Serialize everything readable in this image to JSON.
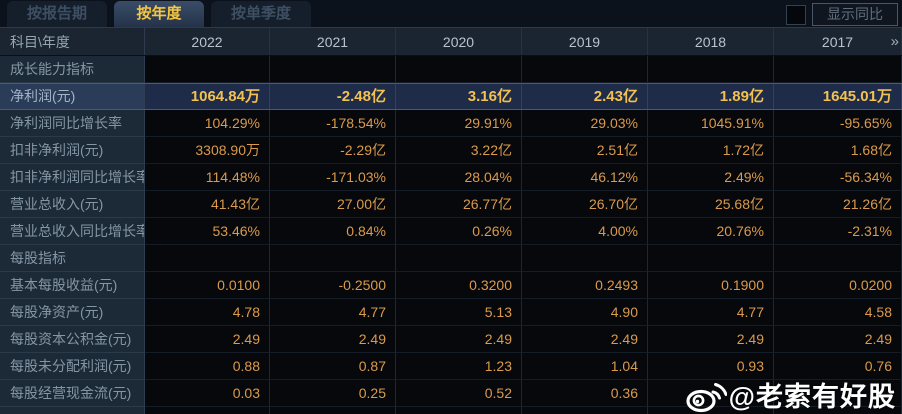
{
  "tabs": {
    "report_period": "按报告期",
    "annual": "按年度",
    "quarterly": "按单季度"
  },
  "toolbar": {
    "show_yoy_label": "显示同比"
  },
  "table": {
    "corner_label": "科目\\年度",
    "years": [
      "2022",
      "2021",
      "2020",
      "2019",
      "2018",
      "2017"
    ],
    "more_icon": "»",
    "rows": [
      {
        "label": "成长能力指标",
        "type": "section",
        "values": [
          "",
          "",
          "",
          "",
          "",
          ""
        ]
      },
      {
        "label": "净利润(元)",
        "type": "highlight",
        "values": [
          "1064.84万",
          "-2.48亿",
          "3.16亿",
          "2.43亿",
          "1.89亿",
          "1645.01万"
        ]
      },
      {
        "label": "净利润同比增长率",
        "type": "data",
        "values": [
          "104.29%",
          "-178.54%",
          "29.91%",
          "29.03%",
          "1045.91%",
          "-95.65%"
        ]
      },
      {
        "label": "扣非净利润(元)",
        "type": "data",
        "values": [
          "3308.90万",
          "-2.29亿",
          "3.22亿",
          "2.51亿",
          "1.72亿",
          "1.68亿"
        ]
      },
      {
        "label": "扣非净利润同比增长率",
        "type": "data",
        "values": [
          "114.48%",
          "-171.03%",
          "28.04%",
          "46.12%",
          "2.49%",
          "-56.34%"
        ]
      },
      {
        "label": "营业总收入(元)",
        "type": "data",
        "values": [
          "41.43亿",
          "27.00亿",
          "26.77亿",
          "26.70亿",
          "25.68亿",
          "21.26亿"
        ]
      },
      {
        "label": "营业总收入同比增长率",
        "type": "data",
        "values": [
          "53.46%",
          "0.84%",
          "0.26%",
          "4.00%",
          "20.76%",
          "-2.31%"
        ]
      },
      {
        "label": "每股指标",
        "type": "section",
        "values": [
          "",
          "",
          "",
          "",
          "",
          ""
        ]
      },
      {
        "label": "基本每股收益(元)",
        "type": "data",
        "values": [
          "0.0100",
          "-0.2500",
          "0.3200",
          "0.2493",
          "0.1900",
          "0.0200"
        ]
      },
      {
        "label": "每股净资产(元)",
        "type": "data",
        "values": [
          "4.78",
          "4.77",
          "5.13",
          "4.90",
          "4.77",
          "4.58"
        ]
      },
      {
        "label": "每股资本公积金(元)",
        "type": "data",
        "values": [
          "2.49",
          "2.49",
          "2.49",
          "2.49",
          "2.49",
          "2.49"
        ]
      },
      {
        "label": "每股未分配利润(元)",
        "type": "data",
        "values": [
          "0.88",
          "0.87",
          "1.23",
          "1.04",
          "0.93",
          "0.76"
        ]
      },
      {
        "label": "每股经营现金流(元)",
        "type": "data",
        "values": [
          "0.03",
          "0.25",
          "0.52",
          "0.36",
          "",
          ""
        ]
      }
    ]
  },
  "watermark": {
    "handle": "@老索有好股",
    "platform_icon": "weibo-icon"
  },
  "colors": {
    "value_orange": "#DB9A4C",
    "highlight_gold": "#F3C14F",
    "tab_active_text": "#F6C63E",
    "highlight_row_bg": "#1E2C4A",
    "label_col_bg": "#1C2936",
    "watermark_white": "#FFFFFF"
  }
}
